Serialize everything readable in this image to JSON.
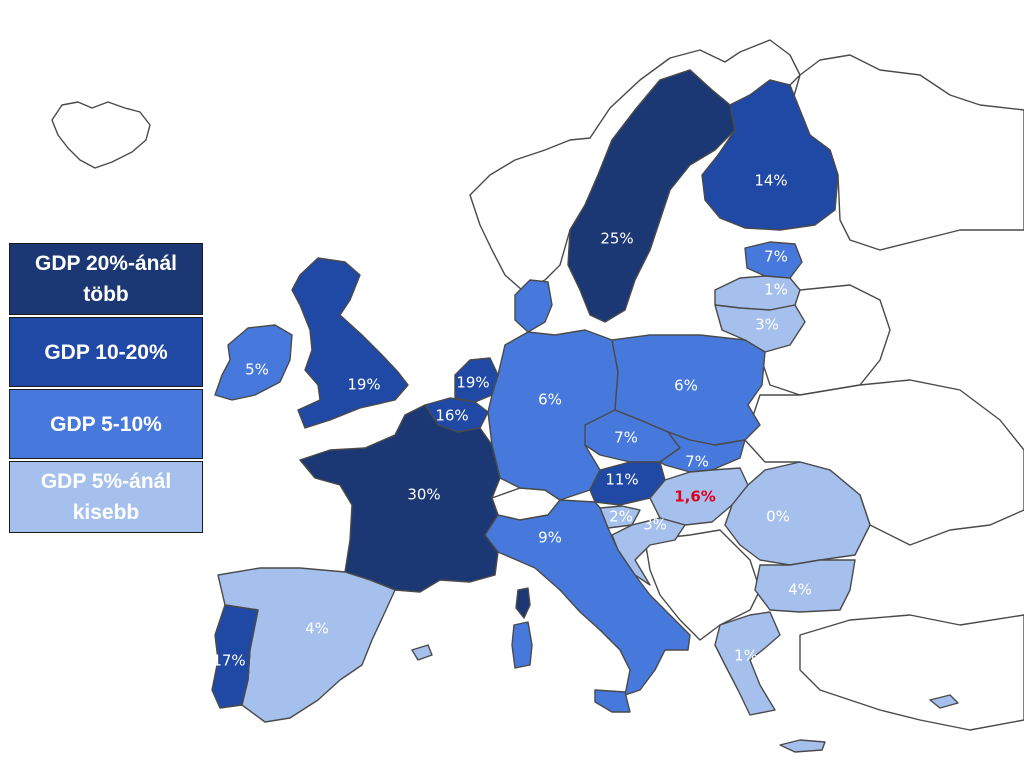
{
  "legend": [
    {
      "label": "GDP 20%-ánál több",
      "color": "#1c3874"
    },
    {
      "label": "GDP 10-20%",
      "color": "#1f49a4"
    },
    {
      "label": "GDP 5-10%",
      "color": "#4779dc"
    },
    {
      "label": "GDP 5%-ánál kisebb",
      "color": "#a6c0ee"
    }
  ],
  "countries": [
    {
      "name": "Sweden",
      "value": "25%"
    },
    {
      "name": "Finland",
      "value": "14%"
    },
    {
      "name": "Estonia",
      "value": "7%"
    },
    {
      "name": "Latvia",
      "value": "1%"
    },
    {
      "name": "Lithuania",
      "value": "3%"
    },
    {
      "name": "Ireland",
      "value": "5%"
    },
    {
      "name": "United Kingdom",
      "value": "19%"
    },
    {
      "name": "Netherlands",
      "value": "19%"
    },
    {
      "name": "Belgium",
      "value": "16%"
    },
    {
      "name": "Germany",
      "value": "6%"
    },
    {
      "name": "Poland",
      "value": "6%"
    },
    {
      "name": "Czech Republic",
      "value": "7%"
    },
    {
      "name": "Slovakia",
      "value": "7%"
    },
    {
      "name": "Austria",
      "value": "11%"
    },
    {
      "name": "Hungary",
      "value": "1,6%"
    },
    {
      "name": "Slovenia",
      "value": "2%"
    },
    {
      "name": "Croatia",
      "value": "3%"
    },
    {
      "name": "Romania",
      "value": "0%"
    },
    {
      "name": "Bulgaria",
      "value": "4%"
    },
    {
      "name": "France",
      "value": "30%"
    },
    {
      "name": "Italy",
      "value": "9%"
    },
    {
      "name": "Spain",
      "value": "4%"
    },
    {
      "name": "Portugal",
      "value": "17%"
    },
    {
      "name": "Greece",
      "value": "1%"
    }
  ]
}
